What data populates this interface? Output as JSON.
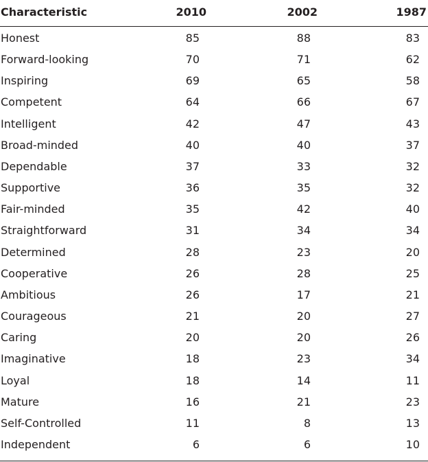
{
  "table": {
    "header": [
      "Characteristic",
      "2010",
      "2002",
      "1987"
    ],
    "rows": [
      [
        "Honest",
        85,
        88,
        83
      ],
      [
        "Forward-looking",
        70,
        71,
        62
      ],
      [
        "Inspiring",
        69,
        65,
        58
      ],
      [
        "Competent",
        64,
        66,
        67
      ],
      [
        "Intelligent",
        42,
        47,
        43
      ],
      [
        "Broad-minded",
        40,
        40,
        37
      ],
      [
        "Dependable",
        37,
        33,
        32
      ],
      [
        "Supportive",
        36,
        35,
        32
      ],
      [
        "Fair-minded",
        35,
        42,
        40
      ],
      [
        "Straightforward",
        31,
        34,
        34
      ],
      [
        "Determined",
        28,
        23,
        20
      ],
      [
        "Cooperative",
        26,
        28,
        25
      ],
      [
        "Ambitious",
        26,
        17,
        21
      ],
      [
        "Courageous",
        21,
        20,
        27
      ],
      [
        "Caring",
        20,
        20,
        26
      ],
      [
        "Imaginative",
        18,
        23,
        34
      ],
      [
        "Loyal",
        18,
        14,
        11
      ],
      [
        "Mature",
        16,
        21,
        23
      ],
      [
        "Self-Controlled",
        11,
        8,
        13
      ],
      [
        "Independent",
        6,
        6,
        10
      ]
    ]
  }
}
